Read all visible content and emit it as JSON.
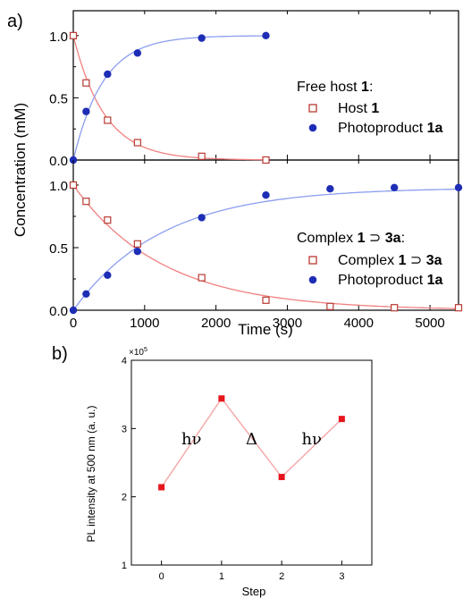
{
  "panel_a": {
    "label": "a)",
    "ylabel": "Concentration (mM)",
    "xlabel": "Time (s)",
    "legend_top": {
      "title_text": "Free host ",
      "title_bold": "1",
      "title_suffix": ":",
      "items": [
        {
          "text": "Host ",
          "bold": "1",
          "tail": ""
        },
        {
          "text": "Photoproduct ",
          "bold": "1a",
          "tail": ""
        }
      ]
    },
    "legend_bottom": {
      "title_text": "Complex ",
      "title_bold": "1",
      "title_mid": " ⊃ ",
      "title_bold2": "3a",
      "title_suffix": ":",
      "items": [
        {
          "text": "Complex ",
          "bold": "1",
          "mid": " ⊃ ",
          "bold2": "3a"
        },
        {
          "text": "Photoproduct ",
          "bold": "1a",
          "mid": "",
          "bold2": ""
        }
      ]
    }
  },
  "panel_b": {
    "label": "b)",
    "ylabel": "PL intensity at 500 nm (a. u.)",
    "xlabel": "Step",
    "exponent_label": "×10",
    "exponent_power": "5",
    "annotations": [
      {
        "text": "hν",
        "x": 0.5,
        "y": 2.85
      },
      {
        "text": "Δ",
        "x": 1.5,
        "y": 2.85
      },
      {
        "text": "hν",
        "x": 2.5,
        "y": 2.85
      }
    ]
  },
  "chart_data": [
    {
      "type": "scatter",
      "panel": "a-top",
      "xlim": [
        0,
        5400
      ],
      "ylim": [
        0,
        1.2
      ],
      "yticks": [
        "0.0",
        "0.5",
        "1.0"
      ],
      "series": [
        {
          "name": "Host 1",
          "marker": "open-square",
          "color": "#b83a32",
          "fit_color": "#f08080",
          "x": [
            0,
            180,
            480,
            900,
            1800,
            2700
          ],
          "y": [
            1.0,
            0.62,
            0.32,
            0.14,
            0.03,
            0.0
          ]
        },
        {
          "name": "Photoproduct 1a",
          "marker": "filled-circle",
          "color": "#1e2db5",
          "fit_color": "#8b9ef0",
          "x": [
            0,
            180,
            480,
            900,
            1800,
            2700
          ],
          "y": [
            0.0,
            0.39,
            0.69,
            0.86,
            0.98,
            1.0
          ]
        }
      ]
    },
    {
      "type": "scatter",
      "panel": "a-bottom",
      "xlim": [
        0,
        5400
      ],
      "ylim": [
        0,
        1.2
      ],
      "xticks": [
        "0",
        "1000",
        "2000",
        "3000",
        "4000",
        "5000"
      ],
      "yticks": [
        "0.0",
        "0.5",
        "1.0"
      ],
      "series": [
        {
          "name": "Complex 1 ⊃ 3a",
          "marker": "open-square",
          "color": "#b83a32",
          "fit_color": "#f08080",
          "x": [
            0,
            180,
            480,
            900,
            1800,
            2700,
            3600,
            4500,
            5400
          ],
          "y": [
            1.0,
            0.87,
            0.72,
            0.53,
            0.26,
            0.08,
            0.03,
            0.02,
            0.02
          ]
        },
        {
          "name": "Photoproduct 1a",
          "marker": "filled-circle",
          "color": "#1e2db5",
          "fit_color": "#8b9ef0",
          "x": [
            0,
            180,
            480,
            900,
            1800,
            2700,
            3600,
            4500,
            5400
          ],
          "y": [
            0.0,
            0.13,
            0.28,
            0.47,
            0.74,
            0.92,
            0.97,
            0.98,
            0.98
          ]
        }
      ]
    },
    {
      "type": "line",
      "panel": "b",
      "xlim": [
        -0.5,
        3.5
      ],
      "ylim": [
        1,
        4
      ],
      "xticks": [
        "0",
        "1",
        "2",
        "3"
      ],
      "yticks": [
        "1",
        "2",
        "3",
        "4"
      ],
      "series": [
        {
          "marker": "filled-square",
          "color": "#e8141c",
          "line_color": "#f4a6a6",
          "x": [
            0,
            1,
            2,
            3
          ],
          "y": [
            2.14,
            3.44,
            2.29,
            3.14
          ]
        }
      ]
    }
  ]
}
